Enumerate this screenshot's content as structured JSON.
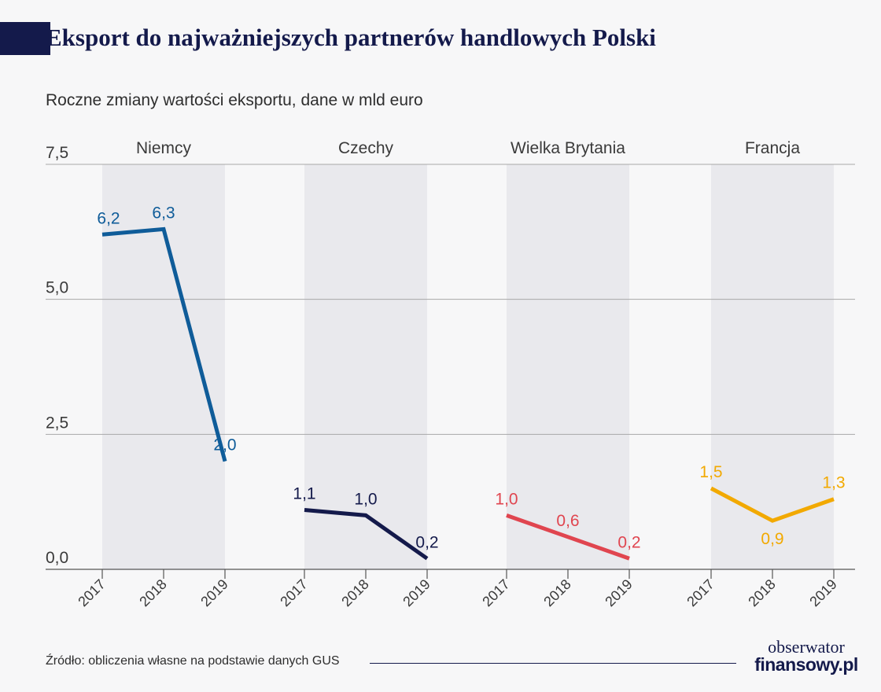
{
  "title": "Eksport do najważniejszych partnerów handlowych Polski",
  "subtitle": "Roczne zmiany wartości eksportu, dane w mld euro",
  "source": "Źródło: obliczenia własne na podstawie danych GUS",
  "logo": {
    "line1": "obserwator",
    "line2": "finansowy.pl"
  },
  "colors": {
    "title": "#141a4b",
    "band": "#e9e9ed",
    "grid": "#a8a8a8",
    "text": "#3a3a3a"
  },
  "chart_data": {
    "type": "line",
    "y_ticks": [
      "0,0",
      "2,5",
      "5,0",
      "7,5"
    ],
    "ylim": [
      0,
      7.5
    ],
    "grid": true,
    "panels": [
      {
        "name": "Niemcy",
        "color": "#0f5c99",
        "years": [
          "2017",
          "2018",
          "2019"
        ],
        "values": [
          6.2,
          6.3,
          2.0
        ],
        "labels": [
          "6,2",
          "6,3",
          "2,0"
        ]
      },
      {
        "name": "Czechy",
        "color": "#141a4b",
        "years": [
          "2017",
          "2018",
          "2019"
        ],
        "values": [
          1.1,
          1.0,
          0.2
        ],
        "labels": [
          "1,1",
          "1,0",
          "0,2"
        ]
      },
      {
        "name": "Wielka Brytania",
        "color": "#e0454f",
        "years": [
          "2017",
          "2018",
          "2019"
        ],
        "values": [
          1.0,
          0.6,
          0.2
        ],
        "labels": [
          "1,0",
          "0,6",
          "0,2"
        ]
      },
      {
        "name": "Francja",
        "color": "#f2a900",
        "years": [
          "2017",
          "2018",
          "2019"
        ],
        "values": [
          1.5,
          0.9,
          1.3
        ],
        "labels": [
          "1,5",
          "0,9",
          "1,3"
        ]
      }
    ]
  }
}
